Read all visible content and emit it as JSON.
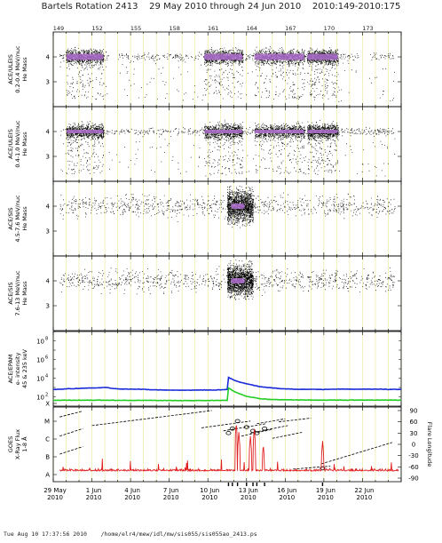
{
  "header": {
    "title": "Bartels Rotation 2413    29 May 2010 through 24 Jun 2010    2010:149-2010:175"
  },
  "footer": {
    "text": "Tue Aug 10 17:37:56 2010    /home/elr4/mew/idl/mw/sis055/sis055ao_2413.ps"
  },
  "colors": {
    "grid": "#e8e892",
    "scatter": "#000000",
    "dense": "#b070d0",
    "epam_high": "#1a2ad8",
    "epam_low": "#22cc22",
    "xray": "#e02020"
  },
  "chart_data": [
    {
      "type": "scatter",
      "ylabel": [
        "ACE/ULEIS",
        "0.2-0.4 MeV/nuc",
        "He Mass"
      ],
      "ylim": [
        2,
        5
      ],
      "yticks": [
        "4",
        "3"
      ],
      "grid": true,
      "x_range_doy": [
        149,
        176
      ],
      "top_tick_labels": [
        "149",
        "152",
        "155",
        "158",
        "161",
        "164",
        "167",
        "170",
        "173"
      ],
      "dense_band_center": 4.0,
      "dense_intervals_doy": [
        [
          150.0,
          152.9
        ],
        [
          160.7,
          163.7
        ],
        [
          164.6,
          168.5
        ],
        [
          168.7,
          171.1
        ]
      ],
      "data_gaps_doy": [
        [
          153.3,
          154.0
        ],
        [
          172.7,
          173.5
        ]
      ]
    },
    {
      "type": "scatter",
      "ylabel": [
        "ACE/ULEIS",
        "0.4-1.0 MeV/nuc",
        "He Mass"
      ],
      "ylim": [
        2,
        5
      ],
      "yticks": [
        "4",
        "3"
      ],
      "grid": true,
      "dense_band_center": 4.0,
      "dense_intervals_doy": [
        [
          150.0,
          152.9
        ],
        [
          160.7,
          163.7
        ],
        [
          164.6,
          168.5
        ],
        [
          168.7,
          171.1
        ]
      ]
    },
    {
      "type": "scatter",
      "ylabel": [
        "ACE/SIS",
        "4.5-7.6 MeV/nuc",
        "He Mass"
      ],
      "ylim": [
        2,
        5
      ],
      "yticks": [
        "4",
        "3"
      ],
      "grid": true,
      "dense_band_center": 4.0,
      "dense_intervals_doy": [
        [
          162.5,
          164.5
        ]
      ]
    },
    {
      "type": "scatter",
      "ylabel": [
        "ACE/SIS",
        "7.6-13 MeV/nuc",
        "He Mass"
      ],
      "ylim": [
        2,
        5
      ],
      "yticks": [
        "4",
        "3"
      ],
      "grid": true,
      "dense_band_center": 4.0,
      "dense_intervals_doy": [
        [
          162.5,
          164.5
        ]
      ]
    },
    {
      "type": "line",
      "ylabel": [
        "ACE/EPAM",
        "e- intensity",
        "45 & 235 keV"
      ],
      "yscale": "log",
      "ylim_exp": [
        1,
        9
      ],
      "ytick_exponents": [
        2,
        4,
        6,
        8
      ],
      "grid": true,
      "series": [
        {
          "color": "#1a2ad8",
          "x": [
            149,
            150,
            151,
            152,
            153,
            154,
            155,
            156,
            157,
            158,
            159,
            160,
            161,
            162,
            162.5,
            162.6,
            163,
            163.5,
            164,
            165,
            166,
            167,
            168,
            169,
            170,
            171,
            172,
            173,
            174,
            175,
            176
          ],
          "y": [
            2.78,
            2.85,
            2.9,
            2.95,
            3.0,
            2.85,
            2.82,
            2.8,
            2.75,
            2.72,
            2.7,
            2.72,
            2.72,
            2.75,
            2.78,
            4.1,
            3.8,
            3.55,
            3.4,
            3.1,
            2.95,
            2.85,
            2.8,
            2.8,
            2.8,
            2.82,
            2.82,
            2.82,
            2.82,
            2.8,
            2.8
          ]
        },
        {
          "color": "#22cc22",
          "x": [
            149,
            150,
            152,
            154,
            156,
            158,
            160,
            162,
            162.5,
            162.6,
            163,
            163.5,
            164,
            165,
            166,
            168,
            170,
            172,
            174,
            176
          ],
          "y": [
            1.62,
            1.64,
            1.64,
            1.62,
            1.62,
            1.6,
            1.6,
            1.62,
            1.62,
            2.95,
            2.6,
            2.3,
            2.05,
            1.8,
            1.7,
            1.66,
            1.65,
            1.65,
            1.65,
            1.65
          ]
        }
      ]
    },
    {
      "type": "line",
      "ylabel": [
        "GOES",
        "X-Ray Flux",
        "1-8 Å"
      ],
      "yclass_ticks": [
        "X",
        "M",
        "C",
        "B",
        "A"
      ],
      "ylabel_right": "Flare Longitude",
      "yticks_right": [
        "90",
        "60",
        "30",
        "0",
        "-30",
        "-60",
        "-90"
      ],
      "ylim_right": [
        -90,
        90
      ],
      "grid": true,
      "xaxis": {
        "x_ticks": [
          {
            "day": "29 May",
            "year": "2010"
          },
          {
            "day": "1 Jun",
            "year": "2010"
          },
          {
            "day": "4 Jun",
            "year": "2010"
          },
          {
            "day": "7 Jun",
            "year": "2010"
          },
          {
            "day": "10 Jun",
            "year": "2010"
          },
          {
            "day": "13 Jun",
            "year": "2010"
          },
          {
            "day": "16 Jun",
            "year": "2010"
          },
          {
            "day": "19 Jun",
            "year": "2010"
          },
          {
            "day": "22 Jun",
            "year": "2010"
          }
        ]
      },
      "xray_base_level": 1.2,
      "xray_peaks": [
        {
          "doy": 163.2,
          "level": 3.9
        },
        {
          "doy": 163.4,
          "level": 3.4
        },
        {
          "doy": 164.3,
          "level": 3.2
        },
        {
          "doy": 164.6,
          "level": 3.6
        },
        {
          "doy": 165.3,
          "level": 2.7
        },
        {
          "doy": 169.9,
          "level": 2.9
        }
      ],
      "flare_tracks": [
        {
          "x": [
            149.5,
            151.2
          ],
          "y": [
            73,
            88
          ]
        },
        {
          "x": [
            149.5,
            151.3
          ],
          "y": [
            22,
            42
          ]
        },
        {
          "x": [
            149.5,
            151.3
          ],
          "y": [
            -26,
            -6
          ]
        },
        {
          "x": [
            152.0,
            161.3
          ],
          "y": [
            50,
            90
          ]
        },
        {
          "x": [
            160.5,
            164.3
          ],
          "y": [
            44,
            62
          ]
        },
        {
          "x": [
            162.2,
            165.5
          ],
          "y": [
            36,
            55
          ]
        },
        {
          "x": [
            163.6,
            166.0
          ],
          "y": [
            22,
            40
          ]
        },
        {
          "x": [
            164.3,
            167.2
          ],
          "y": [
            30,
            50
          ]
        },
        {
          "x": [
            164.8,
            167.0
          ],
          "y": [
            55,
            68
          ]
        },
        {
          "x": [
            166.0,
            168.3
          ],
          "y": [
            16,
            32
          ]
        },
        {
          "x": [
            166.5,
            169.0
          ],
          "y": [
            60,
            70
          ]
        },
        {
          "x": [
            167.6,
            170.5
          ],
          "y": [
            -66,
            -58
          ]
        },
        {
          "x": [
            169.8,
            175.3
          ],
          "y": [
            -52,
            5
          ]
        }
      ],
      "flare_markers": [
        {
          "doy": 162.6,
          "lon": 30
        },
        {
          "doy": 162.9,
          "lon": 42
        },
        {
          "doy": 163.3,
          "lon": 62
        },
        {
          "doy": 164.0,
          "lon": 46
        },
        {
          "doy": 164.5,
          "lon": 36
        },
        {
          "doy": 164.8,
          "lon": 30
        },
        {
          "doy": 165.4,
          "lon": 42
        },
        {
          "doy": 169.9,
          "lon": -64
        }
      ]
    }
  ]
}
